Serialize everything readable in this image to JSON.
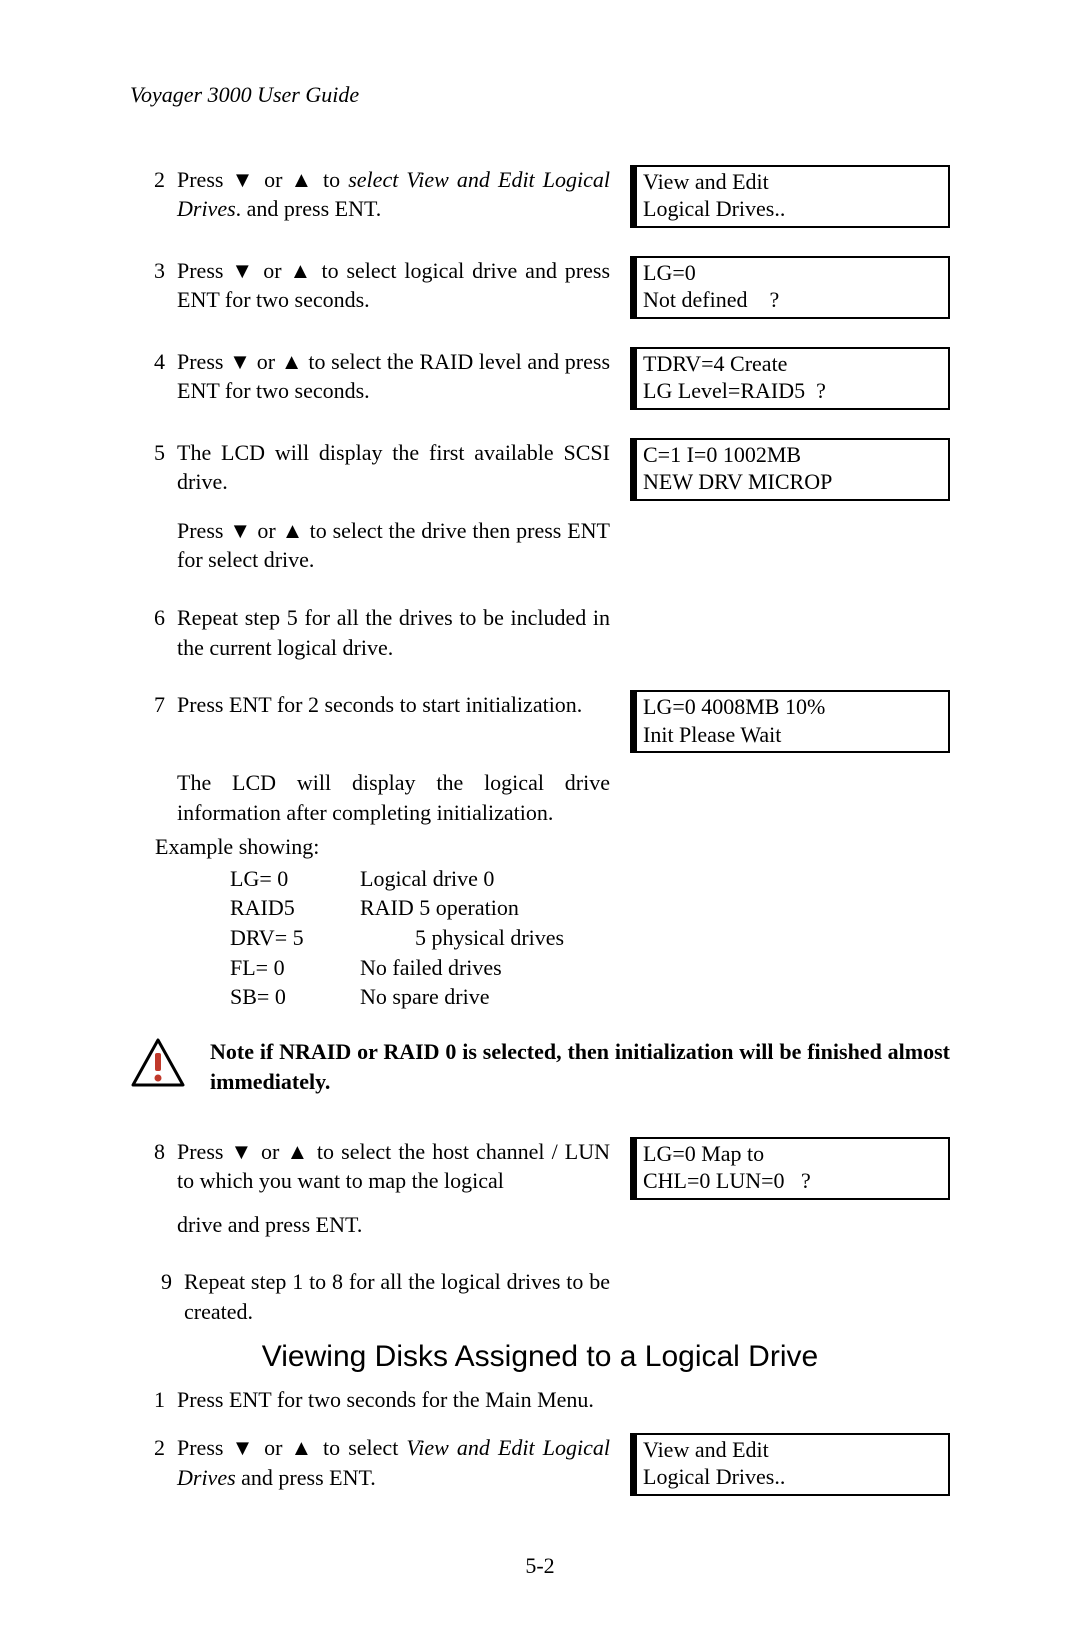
{
  "page": {
    "running_title": "Voyager 3000 User Guide",
    "page_number": "5-2"
  },
  "glyph": {
    "down": "▼",
    "up": "▲"
  },
  "steps_a": [
    {
      "n": "2",
      "pre": "Press ",
      "mid": " or ",
      "post1": " to ",
      "ital": "select View and Edit Logical Drives",
      "post2": ". and press ENT.",
      "lcd": "View and Edit\nLogical Drives.."
    },
    {
      "n": "3",
      "pre": "Press ",
      "mid": " or ",
      "post1": " to select logical drive and press ENT for two seconds.",
      "lcd": "LG=0\nNot defined    ?"
    },
    {
      "n": "4",
      "pre": "Press ",
      "mid": " or ",
      "post1": " to select the RAID level and press ENT for two seconds.",
      "lcd": "TDRV=4 Create\nLG Level=RAID5  ?"
    }
  ],
  "step5": {
    "n": "5",
    "line1": "The LCD will display the first available SCSI drive.",
    "lcd": "C=1 I=0 1002MB\nNEW DRV MICROP",
    "para2_pre": "Press ",
    "para2_mid": " or ",
    "para2_post": " to select the drive then press ENT for select drive."
  },
  "step6": {
    "n": "6",
    "text": "Repeat step 5 for all the drives to be included in the current logical drive."
  },
  "step7": {
    "n": "7",
    "line1": "Press ENT for 2 seconds to start initialization.",
    "lcd": "LG=0 4008MB 10%\nInit Please Wait",
    "para2": "The LCD will display the logical drive information after completing initialization.",
    "example_label": "Example showing:",
    "defs": [
      {
        "k": "LG= 0",
        "v": "Logical drive 0"
      },
      {
        "k": "RAID5",
        "v": "RAID 5 operation"
      },
      {
        "k": "DRV= 5",
        "v": "5 physical drives",
        "shift": true
      },
      {
        "k": "FL= 0",
        "v": "No failed drives"
      },
      {
        "k": "SB= 0",
        "v": "No spare drive"
      }
    ]
  },
  "note": {
    "text": "Note if NRAID or RAID 0 is selected, then initialization will be finished almost immediately.",
    "icon_colors": {
      "border": "#000000",
      "fill": "#f4c430",
      "bang": "#c0392b"
    }
  },
  "step8": {
    "n": "8",
    "pre": "Press ",
    "mid": " or ",
    "post": " to select the host channel / LUN to which you want to map the logical",
    "tail": "drive and press ENT.",
    "lcd": "LG=0 Map to\nCHL=0 LUN=0   ?"
  },
  "step9": {
    "n": "9",
    "text": "Repeat step 1 to 8 for all the logical drives to be created."
  },
  "section_b_title": "Viewing Disks Assigned to a Logical Drive",
  "steps_b": [
    {
      "n": "1",
      "text": "Press ENT for two seconds for the Main Menu."
    },
    {
      "n": "2",
      "pre": "Press ",
      "mid": " or ",
      "post1": " to select ",
      "ital": "View and Edit Logical Drives",
      "post2": " and press ENT.",
      "lcd": "View and Edit\nLogical Drives.."
    }
  ]
}
